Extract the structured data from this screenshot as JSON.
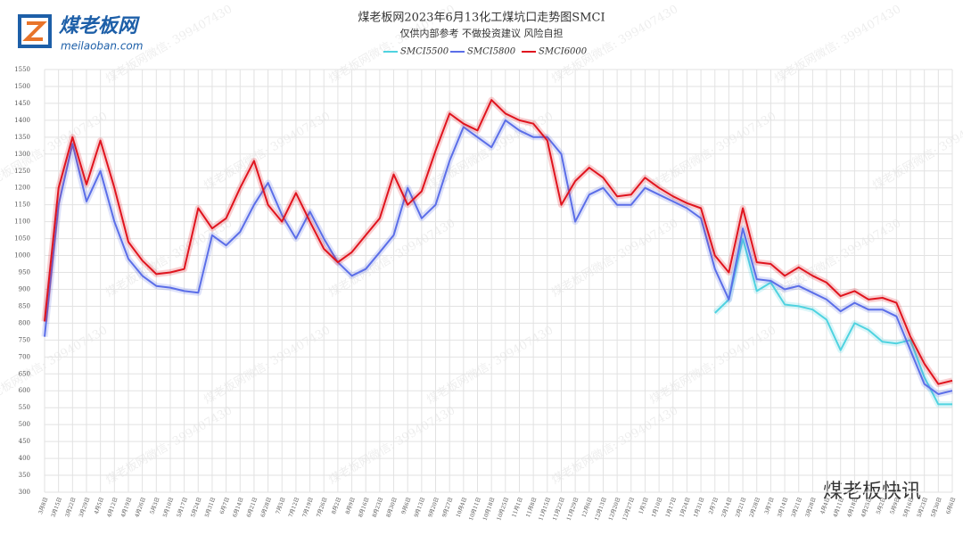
{
  "logo": {
    "name": "煤老板网",
    "url": "meilaoban.com"
  },
  "watermark": "煤老板网微信: 399407430",
  "brand": "煤老板快讯",
  "chart_data": {
    "type": "line",
    "title": "煤老板网2023年6月13化工煤坑口走势图SMCI",
    "subtitle": "仅供内部参考 不做投资建议 风险自担",
    "categories": [
      "3月8日",
      "3月15日",
      "3月22日",
      "3月29日",
      "4月5日",
      "4月12日",
      "4月19日",
      "4月26日",
      "5月3日",
      "5月10日",
      "5月17日",
      "5月24日",
      "5月31日",
      "6月7日",
      "6月14日",
      "6月21日",
      "6月28日",
      "7月5日",
      "7月12日",
      "7月19日",
      "7月26日",
      "8月2日",
      "8月9日",
      "8月16日",
      "8月23日",
      "8月30日",
      "9月6日",
      "9月13日",
      "9月20日",
      "9月27日",
      "10月4日",
      "10月11日",
      "10月18日",
      "10月25日",
      "11月1日",
      "11月8日",
      "11月15日",
      "11月22日",
      "11月29日",
      "12月6日",
      "12月13日",
      "12月20日",
      "12月27日",
      "1月3日",
      "1月10日",
      "1月17日",
      "1月24日",
      "1月31日",
      "2月7日",
      "2月14日",
      "2月21日",
      "2月28日",
      "3月7日",
      "3月14日",
      "3月21日",
      "3月28日",
      "4月4日",
      "4月11日",
      "4月18日",
      "4月25日",
      "5月2日",
      "5月9日",
      "5月16日",
      "5月23日",
      "5月30日",
      "6月6日"
    ],
    "series": [
      {
        "name": "SMCI5500",
        "color": "#4fd3e0",
        "values": [
          null,
          null,
          null,
          null,
          null,
          null,
          null,
          null,
          null,
          null,
          null,
          null,
          null,
          null,
          null,
          null,
          null,
          null,
          null,
          null,
          null,
          null,
          null,
          null,
          null,
          null,
          null,
          null,
          null,
          null,
          null,
          null,
          null,
          null,
          null,
          null,
          null,
          null,
          null,
          null,
          null,
          null,
          null,
          null,
          null,
          null,
          null,
          null,
          830,
          870,
          1050,
          895,
          920,
          855,
          850,
          840,
          810,
          720,
          800,
          780,
          745,
          740,
          750,
          640,
          560,
          560
        ]
      },
      {
        "name": "SMCI5800",
        "color": "#5b6ee8",
        "values": [
          760,
          1150,
          1330,
          1160,
          1250,
          1100,
          990,
          940,
          910,
          905,
          895,
          890,
          1060,
          1030,
          1070,
          1150,
          1215,
          1120,
          1050,
          1130,
          1050,
          980,
          940,
          960,
          1010,
          1060,
          1200,
          1110,
          1150,
          1280,
          1380,
          1350,
          1320,
          1400,
          1370,
          1350,
          1350,
          1300,
          1100,
          1180,
          1200,
          1150,
          1150,
          1200,
          1180,
          1160,
          1140,
          1110,
          960,
          870,
          1080,
          930,
          925,
          900,
          910,
          890,
          870,
          835,
          860,
          840,
          840,
          820,
          720,
          620,
          590,
          600
        ]
      },
      {
        "name": "SMCI6000",
        "color": "#e0141e",
        "values": [
          805,
          1200,
          1350,
          1210,
          1340,
          1200,
          1040,
          985,
          945,
          950,
          960,
          1140,
          1080,
          1110,
          1200,
          1280,
          1150,
          1100,
          1185,
          1100,
          1020,
          980,
          1010,
          1060,
          1110,
          1240,
          1150,
          1190,
          1310,
          1420,
          1390,
          1370,
          1460,
          1420,
          1400,
          1390,
          1340,
          1150,
          1220,
          1260,
          1230,
          1175,
          1180,
          1230,
          1200,
          1175,
          1155,
          1140,
          1000,
          950,
          1140,
          980,
          975,
          940,
          965,
          940,
          920,
          880,
          895,
          870,
          875,
          860,
          760,
          680,
          620,
          630
        ]
      }
    ],
    "ylim": [
      300,
      1550
    ],
    "yticks": [
      300,
      350,
      400,
      450,
      500,
      550,
      600,
      650,
      700,
      750,
      800,
      850,
      900,
      950,
      1000,
      1050,
      1100,
      1150,
      1200,
      1250,
      1300,
      1350,
      1400,
      1450,
      1500,
      1550
    ],
    "grid": true
  }
}
